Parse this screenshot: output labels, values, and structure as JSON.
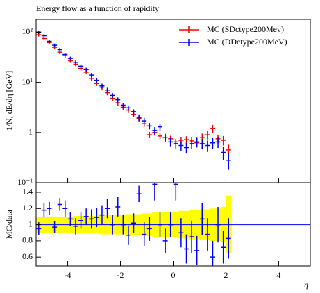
{
  "chart_data": [
    {
      "type": "errorbar",
      "title": "Energy flow as a function of rapidity",
      "ylabel": "1/N, dE/dη [GeV]",
      "log_y": true,
      "xlim": [
        -5.2,
        5.2
      ],
      "ylim": [
        0.1,
        180
      ],
      "yticks": [
        {
          "value": 100,
          "label": "10²"
        },
        {
          "value": 10,
          "label": "10¹"
        },
        1,
        {
          "value": 0.1,
          "label": "10⁻¹"
        }
      ],
      "legend": "upper right",
      "x": [
        -5.1,
        -4.9,
        -4.7,
        -4.5,
        -4.3,
        -4.1,
        -3.9,
        -3.7,
        -3.5,
        -3.3,
        -3.1,
        -2.9,
        -2.7,
        -2.5,
        -2.3,
        -2.1,
        -1.9,
        -1.7,
        -1.5,
        -1.3,
        -1.1,
        -0.9,
        -0.7,
        -0.5,
        -0.3,
        -0.1,
        0.1,
        0.3,
        0.5,
        0.7,
        0.9,
        1.1,
        1.3,
        1.5,
        1.7,
        1.9,
        2.1
      ],
      "series": [
        {
          "name": "MC (SDctype200Mev)",
          "color": "#ff0000",
          "values": [
            89,
            75,
            62,
            50,
            40,
            34,
            27,
            23,
            19,
            16,
            12,
            9.5,
            8,
            6.2,
            4.8,
            3.9,
            3.2,
            2.8,
            2.3,
            1.9,
            1.5,
            0.9,
            1.0,
            0.85,
            0.8,
            0.75,
            0.65,
            0.7,
            0.72,
            0.68,
            0.62,
            0.8,
            0.9,
            1.2,
            0.75,
            0.7,
            0.45
          ],
          "errors": [
            7,
            6,
            5,
            4,
            3.5,
            3,
            2.5,
            2,
            1.8,
            1.5,
            1.2,
            1,
            0.9,
            0.7,
            0.55,
            0.45,
            0.4,
            0.35,
            0.3,
            0.25,
            0.2,
            0.13,
            0.14,
            0.12,
            0.12,
            0.11,
            0.1,
            0.11,
            0.12,
            0.12,
            0.12,
            0.15,
            0.17,
            0.22,
            0.15,
            0.15,
            0.12
          ]
        },
        {
          "name": "MC (DDctype200MeV)",
          "color": "#0000ff",
          "values": [
            100,
            85,
            66,
            55,
            45,
            36,
            30,
            25,
            21,
            18,
            14,
            11,
            8.5,
            7,
            5.5,
            4.5,
            3.5,
            3.1,
            2.6,
            2.0,
            1.7,
            1.35,
            1.1,
            1.3,
            0.8,
            0.65,
            0.6,
            0.55,
            0.5,
            0.6,
            0.65,
            0.6,
            0.55,
            0.62,
            0.65,
            0.4,
            0.28
          ],
          "errors": [
            8,
            7,
            5,
            4.5,
            4,
            3,
            2.6,
            2.2,
            1.9,
            1.6,
            1.3,
            1,
            0.9,
            0.8,
            0.6,
            0.5,
            0.4,
            0.35,
            0.3,
            0.3,
            0.25,
            0.2,
            0.18,
            0.2,
            0.14,
            0.12,
            0.12,
            0.12,
            0.12,
            0.13,
            0.14,
            0.14,
            0.14,
            0.15,
            0.16,
            0.12,
            0.1
          ]
        }
      ]
    },
    {
      "type": "ratio",
      "ylabel": "MC/data",
      "xlabel": "η",
      "xlim": [
        -5.2,
        5.2
      ],
      "ylim": [
        0.49,
        1.52
      ],
      "xticks": [
        -4,
        -2,
        0,
        2,
        4
      ],
      "yticks": [
        1.4,
        1.2,
        1,
        0.8,
        0.6
      ],
      "reference": 1,
      "band_color": "#ffff00",
      "x": [
        -5.1,
        -4.9,
        -4.7,
        -4.5,
        -4.3,
        -4.1,
        -3.9,
        -3.7,
        -3.5,
        -3.3,
        -3.1,
        -2.9,
        -2.7,
        -2.5,
        -2.3,
        -2.1,
        -1.9,
        -1.7,
        -1.5,
        -1.3,
        -1.1,
        -0.9,
        -0.7,
        -0.5,
        -0.3,
        -0.1,
        0.1,
        0.3,
        0.5,
        0.7,
        0.9,
        1.1,
        1.3,
        1.5,
        1.7,
        1.9,
        2.1
      ],
      "band_errors": [
        0.1,
        0.1,
        0.1,
        0.1,
        0.1,
        0.1,
        0.1,
        0.11,
        0.11,
        0.11,
        0.11,
        0.11,
        0.12,
        0.12,
        0.12,
        0.12,
        0.12,
        0.13,
        0.13,
        0.13,
        0.14,
        0.14,
        0.15,
        0.15,
        0.16,
        0.16,
        0.16,
        0.17,
        0.17,
        0.18,
        0.18,
        0.19,
        0.19,
        0.2,
        0.2,
        0.22,
        0.35
      ],
      "series": [
        {
          "color": "#0000ff",
          "values": [
            0.95,
            1.18,
            1.2,
            0.97,
            1.25,
            1.2,
            1.07,
            0.98,
            1.05,
            1.1,
            1.07,
            1.09,
            1.12,
            1.2,
            1.0,
            1.22,
            1.0,
            0.87,
            1.02,
            1.38,
            0.88,
            0.95,
            1.5,
            1.0,
            0.8,
            1.0,
            1.5,
            0.9,
            0.7,
            0.85,
            0.68,
            1.07,
            0.88,
            0.6,
            1.0,
            0.72,
            0.83
          ],
          "errors": [
            0.08,
            0.09,
            0.08,
            0.07,
            0.08,
            0.1,
            0.09,
            0.1,
            0.1,
            0.1,
            0.12,
            0.12,
            0.12,
            0.12,
            0.12,
            0.12,
            0.12,
            0.12,
            0.12,
            0.1,
            0.15,
            0.15,
            0.2,
            0.15,
            0.15,
            0.15,
            0.2,
            0.18,
            0.18,
            0.2,
            0.18,
            0.2,
            0.2,
            0.2,
            0.22,
            0.2,
            0.25
          ]
        }
      ]
    }
  ]
}
